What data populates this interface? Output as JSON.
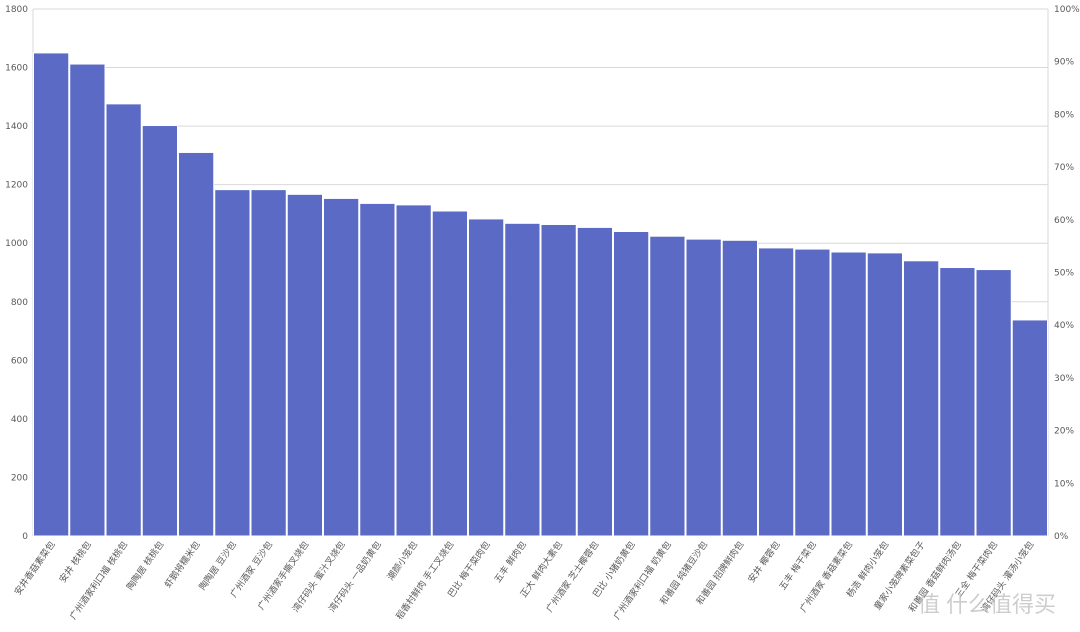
{
  "chart_data": {
    "type": "bar",
    "title": "",
    "xlabel": "",
    "ylabel": "",
    "ylim": [
      0,
      1800
    ],
    "y_ticks": [
      "0",
      "200",
      "400",
      "600",
      "800",
      "1000",
      "1200",
      "1400",
      "1600",
      "1800"
    ],
    "y2lim": [
      0,
      1
    ],
    "y2_ticks": [
      "0%",
      "10%",
      "20%",
      "30%",
      "40%",
      "50%",
      "60%",
      "70%",
      "80%",
      "90%",
      "100%"
    ],
    "grid": true,
    "legend": "none",
    "bar_color": "#5b6ac4",
    "categories": [
      "安井香菇素菜包",
      "安井 核桃包",
      "广州酒家利口福 核桃包",
      "陶陶居 核桃包",
      "虾鹅将糯米包",
      "陶陶居 豆沙包",
      "广州酒家 豆沙包",
      "广州酒家手撕叉烧包",
      "湾仔码头 蜜汁叉烧包",
      "湾仔码头 一品奶黄包",
      "潮颜小笼包",
      "稻香村鲜肉 手工叉烧包",
      "巴比 梅干菜肉包",
      "五丰 鲜肉包",
      "正大 鲜肉大素包",
      "广州酒家 芝士椰蓉包",
      "巴比 小猪奶黄包",
      "广州酒家利口福 奶黄包",
      "和善园 纯猪豆沙包",
      "和善园 招牌鲜肉包",
      "安井 椰蓉包",
      "五丰 梅干菜包",
      "广州酒家 香菇素菜包",
      "杨浩 鲜肉小笼包",
      "童家小笼牌素菜包子",
      "和善园 香菇鲜肉汤包",
      "三全 梅干菜肉包",
      "湾仔码头 灌汤小笼包"
    ],
    "values": [
      1650,
      1612,
      1476,
      1402,
      1310,
      1183,
      1183,
      1167,
      1153,
      1136,
      1131,
      1110,
      1083,
      1068,
      1064,
      1054,
      1040,
      1024,
      1014,
      1010,
      984,
      980,
      970,
      967,
      940,
      917,
      910,
      738
    ]
  },
  "watermark": {
    "logo_glyph": "值",
    "text": "什么值得买"
  }
}
